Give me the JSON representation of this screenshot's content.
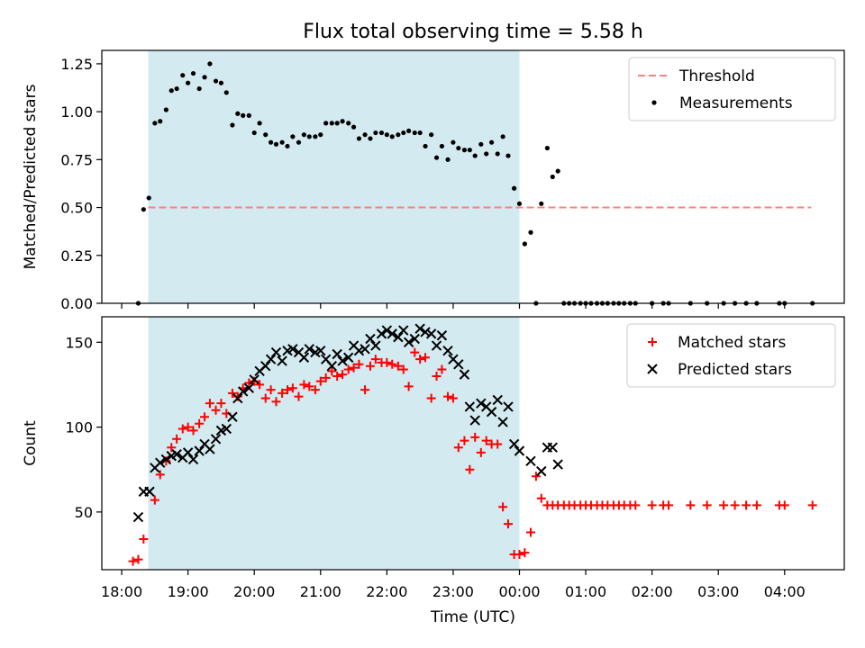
{
  "chart_data": {
    "title": "Flux total observing time = 5.58 h",
    "x_tick_labels": [
      "18:00",
      "19:00",
      "20:00",
      "21:00",
      "22:00",
      "23:00",
      "00:00",
      "01:00",
      "02:00",
      "03:00",
      "04:00"
    ],
    "x_ticks_hours": [
      0,
      1,
      2,
      3,
      4,
      5,
      6,
      7,
      8,
      9,
      10
    ],
    "xlim": [
      -0.3,
      10.9
    ],
    "xlabel": "Time (UTC)",
    "x_unit": "hours since 18:00 UTC",
    "observing_window": [
      0.4,
      6.0
    ],
    "observing_window_color": "#d3eaf0",
    "panels": [
      {
        "type": "scatter",
        "ylabel": "Matched/Predicted stars",
        "ylim": [
          0,
          1.32
        ],
        "y_ticks": [
          "0.00",
          "0.25",
          "0.50",
          "0.75",
          "1.00",
          "1.25"
        ],
        "y_tick_values": [
          0,
          0.25,
          0.5,
          0.75,
          1.0,
          1.25
        ],
        "legend_position": "top-right",
        "threshold": {
          "name": "Threshold",
          "value": 0.5,
          "color": "#ff7f7f",
          "x_range": [
            0.4,
            10.4
          ]
        },
        "series": [
          {
            "name": "Measurements",
            "color": "#000000",
            "marker": "dot",
            "x": [
              0.25,
              0.33,
              0.41,
              0.5,
              0.58,
              0.67,
              0.75,
              0.83,
              0.92,
              1.0,
              1.08,
              1.17,
              1.25,
              1.33,
              1.42,
              1.5,
              1.58,
              1.67,
              1.75,
              1.83,
              1.92,
              2.0,
              2.08,
              2.17,
              2.25,
              2.33,
              2.42,
              2.5,
              2.58,
              2.67,
              2.75,
              2.83,
              2.92,
              3.0,
              3.08,
              3.17,
              3.25,
              3.33,
              3.42,
              3.5,
              3.58,
              3.67,
              3.75,
              3.83,
              3.92,
              4.0,
              4.08,
              4.17,
              4.25,
              4.33,
              4.42,
              4.5,
              4.58,
              4.67,
              4.75,
              4.83,
              4.92,
              5.0,
              5.08,
              5.17,
              5.25,
              5.33,
              5.42,
              5.5,
              5.58,
              5.67,
              5.75,
              5.83,
              5.92,
              6.0,
              6.08,
              6.17,
              6.25,
              6.33,
              6.42,
              6.5,
              6.58,
              6.67,
              6.75,
              6.83,
              6.92,
              7.0,
              7.08,
              7.17,
              7.25,
              7.33,
              7.42,
              7.5,
              7.58,
              7.67,
              7.75,
              8.0,
              8.17,
              8.25,
              8.58,
              8.83,
              9.08,
              9.25,
              9.42,
              9.58,
              9.92,
              10.0,
              10.42
            ],
            "y": [
              0.0,
              0.49,
              0.55,
              0.94,
              0.95,
              1.01,
              1.11,
              1.12,
              1.19,
              1.15,
              1.2,
              1.12,
              1.18,
              1.25,
              1.16,
              1.15,
              1.1,
              0.93,
              0.99,
              0.98,
              0.98,
              0.89,
              0.94,
              0.88,
              0.84,
              0.83,
              0.84,
              0.82,
              0.87,
              0.84,
              0.88,
              0.87,
              0.87,
              0.88,
              0.94,
              0.94,
              0.94,
              0.95,
              0.94,
              0.92,
              0.86,
              0.88,
              0.86,
              0.89,
              0.89,
              0.88,
              0.87,
              0.88,
              0.89,
              0.9,
              0.89,
              0.89,
              0.82,
              0.88,
              0.76,
              0.82,
              0.75,
              0.84,
              0.81,
              0.8,
              0.8,
              0.77,
              0.83,
              0.78,
              0.84,
              0.78,
              0.87,
              0.77,
              0.6,
              0.52,
              0.31,
              0.37,
              0.0,
              0.52,
              0.81,
              0.66,
              0.69,
              0.0,
              0.0,
              0.0,
              0.0,
              0.0,
              0.0,
              0.0,
              0.0,
              0.0,
              0.0,
              0.0,
              0.0,
              0.0,
              0.0,
              0.0,
              0.0,
              0.0,
              0.0,
              0.0,
              0.0,
              0.0,
              0.0,
              0.0,
              0.0,
              0.0,
              0.0
            ]
          }
        ]
      },
      {
        "type": "scatter",
        "ylabel": "Count",
        "ylim": [
          16,
          165
        ],
        "y_ticks": [
          "50",
          "100",
          "150"
        ],
        "y_tick_values": [
          50,
          100,
          150
        ],
        "legend_position": "top-right",
        "series": [
          {
            "name": "Matched stars",
            "color": "#ff0000",
            "marker": "plus",
            "x": [
              0.17,
              0.25,
              0.33,
              0.5,
              0.58,
              0.67,
              0.75,
              0.83,
              0.92,
              1.0,
              1.08,
              1.17,
              1.25,
              1.33,
              1.42,
              1.5,
              1.58,
              1.67,
              1.75,
              1.83,
              1.92,
              2.0,
              2.08,
              2.17,
              2.25,
              2.33,
              2.42,
              2.5,
              2.58,
              2.67,
              2.75,
              2.83,
              2.92,
              3.0,
              3.08,
              3.17,
              3.25,
              3.33,
              3.42,
              3.5,
              3.58,
              3.67,
              3.75,
              3.83,
              3.92,
              4.0,
              4.08,
              4.17,
              4.25,
              4.33,
              4.42,
              4.5,
              4.58,
              4.67,
              4.75,
              4.83,
              4.92,
              5.0,
              5.08,
              5.17,
              5.25,
              5.33,
              5.42,
              5.5,
              5.58,
              5.67,
              5.75,
              5.83,
              5.92,
              6.0,
              6.08,
              6.17,
              6.25,
              6.33,
              6.42,
              6.5,
              6.58,
              6.67,
              6.75,
              6.83,
              6.92,
              7.0,
              7.08,
              7.17,
              7.25,
              7.33,
              7.42,
              7.5,
              7.58,
              7.67,
              7.75,
              8.0,
              8.17,
              8.25,
              8.58,
              8.83,
              9.08,
              9.25,
              9.42,
              9.58,
              9.92,
              10.0,
              10.42
            ],
            "y": [
              21,
              22,
              34,
              57,
              72,
              80,
              88,
              93,
              99,
              100,
              98,
              102,
              106,
              114,
              110,
              114,
              108,
              120,
              118,
              123,
              126,
              127,
              125,
              117,
              122,
              115,
              120,
              122,
              123,
              118,
              125,
              124,
              122,
              127,
              129,
              133,
              130,
              131,
              134,
              135,
              137,
              122,
              136,
              140,
              138,
              138,
              137,
              136,
              134,
              124,
              144,
              140,
              141,
              117,
              130,
              134,
              118,
              117,
              88,
              92,
              75,
              94,
              85,
              92,
              90,
              90,
              53,
              43,
              25,
              25,
              26,
              38,
              71,
              58,
              54,
              54,
              54,
              54,
              54,
              54,
              54,
              54,
              54,
              54,
              54,
              54,
              54,
              54,
              54,
              54,
              54,
              54,
              54,
              54,
              54,
              54,
              54,
              54,
              54,
              54,
              54,
              54,
              54
            ]
          },
          {
            "name": "Predicted stars",
            "color": "#000000",
            "marker": "x",
            "x": [
              0.25,
              0.33,
              0.42,
              0.5,
              0.58,
              0.67,
              0.75,
              0.83,
              0.92,
              1.0,
              1.08,
              1.17,
              1.25,
              1.33,
              1.42,
              1.5,
              1.58,
              1.67,
              1.75,
              1.83,
              1.92,
              2.0,
              2.08,
              2.17,
              2.25,
              2.33,
              2.42,
              2.5,
              2.58,
              2.67,
              2.75,
              2.83,
              2.92,
              3.0,
              3.08,
              3.17,
              3.25,
              3.33,
              3.42,
              3.5,
              3.58,
              3.67,
              3.75,
              3.83,
              3.92,
              4.0,
              4.08,
              4.17,
              4.25,
              4.33,
              4.42,
              4.5,
              4.58,
              4.67,
              4.75,
              4.83,
              4.92,
              5.0,
              5.08,
              5.17,
              5.25,
              5.33,
              5.42,
              5.5,
              5.58,
              5.67,
              5.75,
              5.83,
              5.92,
              6.0,
              6.17,
              6.33,
              6.42,
              6.5,
              6.58
            ],
            "y": [
              47,
              62,
              62,
              76,
              79,
              81,
              83,
              84,
              82,
              85,
              81,
              86,
              90,
              87,
              93,
              98,
              99,
              106,
              117,
              121,
              123,
              128,
              133,
              136,
              140,
              144,
              139,
              145,
              146,
              144,
              141,
              146,
              144,
              145,
              140,
              136,
              143,
              139,
              141,
              148,
              145,
              146,
              152,
              148,
              155,
              157,
              155,
              153,
              157,
              150,
              152,
              158,
              156,
              155,
              148,
              154,
              145,
              140,
              137,
              131,
              112,
              104,
              114,
              112,
              109,
              116,
              103,
              112,
              90,
              86,
              80,
              74,
              88,
              88,
              78
            ]
          }
        ]
      }
    ]
  }
}
